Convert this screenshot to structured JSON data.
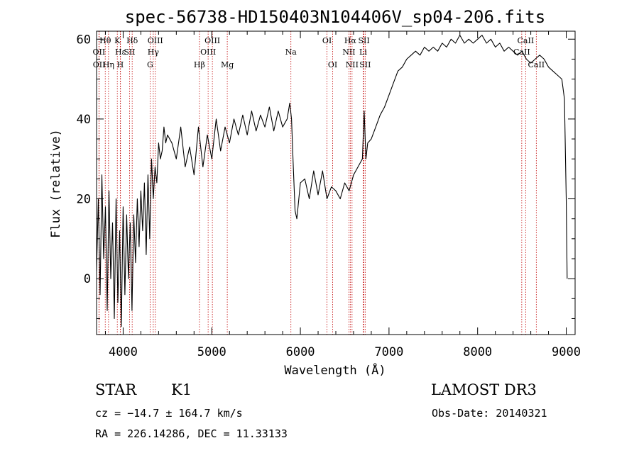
{
  "chart_data": {
    "type": "line",
    "title": "spec-56738-HD150403N104406V_sp04-206.fits",
    "xlabel": "Wavelength (Å)",
    "ylabel": "Flux (relative)",
    "xlim": [
      3700,
      9100
    ],
    "ylim": [
      -14,
      62
    ],
    "xticks": [
      4000,
      5000,
      6000,
      7000,
      8000,
      9000
    ],
    "yticks": [
      0,
      20,
      40,
      60
    ],
    "xminor_step": 200,
    "yminor_step": 5,
    "series": [
      {
        "name": "spectrum",
        "x": [
          3700,
          3720,
          3740,
          3760,
          3780,
          3800,
          3820,
          3840,
          3860,
          3880,
          3900,
          3920,
          3940,
          3960,
          3980,
          4000,
          4020,
          4040,
          4060,
          4080,
          4100,
          4120,
          4140,
          4160,
          4180,
          4200,
          4220,
          4240,
          4260,
          4280,
          4300,
          4320,
          4340,
          4360,
          4380,
          4400,
          4420,
          4440,
          4460,
          4480,
          4500,
          4550,
          4600,
          4650,
          4700,
          4750,
          4800,
          4850,
          4900,
          4950,
          5000,
          5050,
          5100,
          5150,
          5200,
          5250,
          5300,
          5350,
          5400,
          5450,
          5500,
          5550,
          5600,
          5650,
          5700,
          5750,
          5800,
          5850,
          5880,
          5900,
          5920,
          5940,
          5960,
          6000,
          6050,
          6100,
          6150,
          6200,
          6250,
          6300,
          6350,
          6400,
          6450,
          6500,
          6550,
          6600,
          6650,
          6700,
          6720,
          6740,
          6760,
          6800,
          6850,
          6900,
          6950,
          7000,
          7050,
          7100,
          7150,
          7200,
          7250,
          7300,
          7350,
          7400,
          7450,
          7500,
          7550,
          7600,
          7650,
          7700,
          7750,
          7800,
          7850,
          7900,
          7950,
          8000,
          8050,
          8100,
          8150,
          8200,
          8250,
          8300,
          8350,
          8400,
          8450,
          8500,
          8550,
          8600,
          8650,
          8700,
          8750,
          8800,
          8850,
          8900,
          8950,
          8980,
          9000,
          9010
        ],
        "values": [
          2,
          20,
          -4,
          26,
          5,
          18,
          -8,
          22,
          0,
          14,
          -10,
          20,
          -6,
          12,
          -12,
          18,
          -4,
          16,
          0,
          14,
          -8,
          16,
          4,
          20,
          8,
          22,
          12,
          24,
          6,
          26,
          10,
          30,
          20,
          28,
          24,
          34,
          30,
          32,
          38,
          34,
          36,
          34,
          30,
          38,
          28,
          33,
          26,
          38,
          28,
          36,
          30,
          40,
          32,
          38,
          34,
          40,
          36,
          41,
          36,
          42,
          37,
          41,
          38,
          43,
          37,
          42,
          38,
          40,
          44,
          40,
          28,
          17,
          15,
          24,
          25,
          20,
          27,
          21,
          27,
          20,
          23,
          22,
          20,
          24,
          22,
          26,
          28,
          30,
          42,
          30,
          34,
          35,
          38,
          41,
          43,
          46,
          49,
          52,
          53,
          55,
          56,
          57,
          56,
          58,
          57,
          58,
          57,
          59,
          58,
          60,
          59,
          61,
          59,
          60,
          59,
          60,
          61,
          59,
          60,
          58,
          59,
          57,
          58,
          57,
          56,
          57,
          55,
          54,
          55,
          56,
          55,
          53,
          52,
          51,
          50,
          45,
          20,
          0
        ]
      }
    ],
    "spectral_lines": [
      {
        "label": "Hθ",
        "wavelength": 3798,
        "row": 1
      },
      {
        "label": "OII",
        "wavelength": 3727,
        "row": 2
      },
      {
        "label": "OII",
        "wavelength": 3729,
        "row": 3
      },
      {
        "label": "K",
        "wavelength": 3934,
        "row": 1
      },
      {
        "label": "Hε",
        "wavelength": 3970,
        "row": 2
      },
      {
        "label": "Hη",
        "wavelength": 3835,
        "row": 3
      },
      {
        "label": "H",
        "wavelength": 3968,
        "row": 3
      },
      {
        "label": "Hδ",
        "wavelength": 4102,
        "row": 1
      },
      {
        "label": "SII",
        "wavelength": 4072,
        "row": 2
      },
      {
        "label": "OIII",
        "wavelength": 4363,
        "row": 1
      },
      {
        "label": "Hγ",
        "wavelength": 4340,
        "row": 2
      },
      {
        "label": "G",
        "wavelength": 4304,
        "row": 3
      },
      {
        "label": "OIII",
        "wavelength": 5007,
        "row": 1
      },
      {
        "label": "OIII",
        "wavelength": 4959,
        "row": 2
      },
      {
        "label": "Hβ",
        "wavelength": 4861,
        "row": 3
      },
      {
        "label": "Mg",
        "wavelength": 5175,
        "row": 3
      },
      {
        "label": "Na",
        "wavelength": 5893,
        "row": 2
      },
      {
        "label": "OI",
        "wavelength": 6300,
        "row": 1
      },
      {
        "label": "OI",
        "wavelength": 6364,
        "row": 3
      },
      {
        "label": "Hα",
        "wavelength": 6563,
        "row": 1
      },
      {
        "label": "NII",
        "wavelength": 6548,
        "row": 2
      },
      {
        "label": "NII",
        "wavelength": 6583,
        "row": 3
      },
      {
        "label": "SII",
        "wavelength": 6717,
        "row": 1
      },
      {
        "label": "Li",
        "wavelength": 6708,
        "row": 2
      },
      {
        "label": "SII",
        "wavelength": 6731,
        "row": 3
      },
      {
        "label": "CaII",
        "wavelength": 8542,
        "row": 1
      },
      {
        "label": "CaII",
        "wavelength": 8498,
        "row": 2
      },
      {
        "label": "CaII",
        "wavelength": 8662,
        "row": 3
      }
    ]
  },
  "info": {
    "class": "STAR",
    "subclass": "K1",
    "survey": "LAMOST DR3",
    "cz": "cz = −14.7 ± 164.7 km/s",
    "obs_date": "Obs-Date: 20140321",
    "coords": "RA = 226.14286, DEC =  11.33133"
  },
  "colors": {
    "line": "#000000",
    "spectral_line": "#c00000",
    "background": "#ffffff"
  }
}
